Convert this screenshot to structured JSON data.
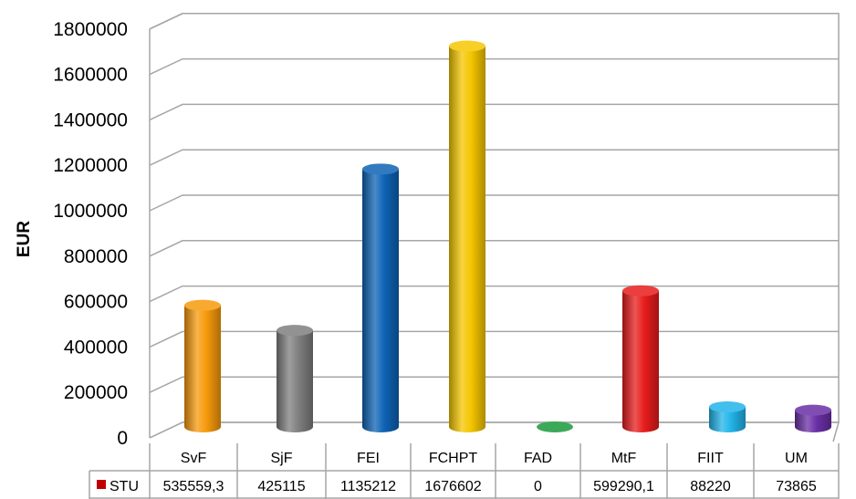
{
  "chart_data": {
    "type": "bar",
    "style": "3d-cylinder",
    "categories": [
      "SvF",
      "SjF",
      "FEI",
      "FCHPT",
      "FAD",
      "MtF",
      "FIIT",
      "UM"
    ],
    "series": [
      {
        "name": "STU",
        "values": [
          535559.3,
          425115,
          1135212,
          1676602,
          0,
          599290.1,
          88220,
          73865
        ],
        "value_labels": [
          "535559,3",
          "425115",
          "1135212",
          "1676602",
          "0",
          "599290,1",
          "88220",
          "73865"
        ],
        "legend_color": "#c00000"
      }
    ],
    "bar_colors": [
      "#f79a0c",
      "#7f7f7f",
      "#0e63b5",
      "#f5c600",
      "#1a9a3c",
      "#e81c1c",
      "#22b4ea",
      "#6a2fa6"
    ],
    "ylabel": "EUR",
    "ylim": [
      0,
      1800000
    ],
    "yticks": [
      "0",
      "200000",
      "400000",
      "600000",
      "800000",
      "1000000",
      "1200000",
      "1400000",
      "1600000",
      "1800000"
    ],
    "grid": true,
    "data_table": true
  }
}
